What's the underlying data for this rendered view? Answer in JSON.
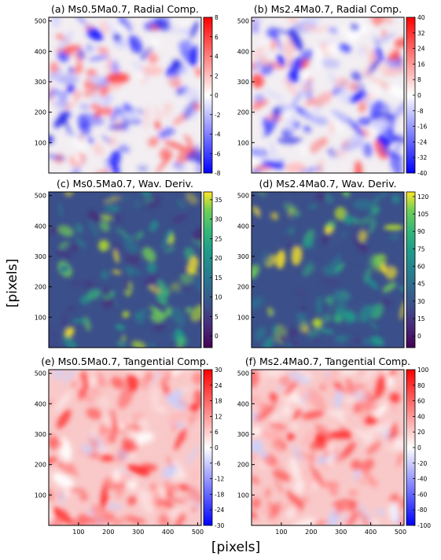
{
  "figure": {
    "xlabel": "[pixels]",
    "ylabel": "[pixels]"
  },
  "chart_data": [
    {
      "type": "heatmap",
      "id": "a",
      "title": "(a) Ms0.5Ma0.7, Radial Comp.",
      "x_ticks": [],
      "y_ticks": [
        100,
        200,
        300,
        400,
        500
      ],
      "xlim": [
        0,
        512
      ],
      "ylim": [
        0,
        512
      ],
      "colormap": "bwr",
      "colorbar": {
        "min": -8,
        "max": 8,
        "ticks": [
          -8,
          -6,
          -4,
          -2,
          0,
          2,
          4,
          6,
          8
        ]
      }
    },
    {
      "type": "heatmap",
      "id": "b",
      "title": "(b) Ms2.4Ma0.7, Radial Comp.",
      "x_ticks": [],
      "y_ticks": [
        100,
        200,
        300,
        400,
        500
      ],
      "xlim": [
        0,
        512
      ],
      "ylim": [
        0,
        512
      ],
      "colormap": "bwr",
      "colorbar": {
        "min": -40,
        "max": 40,
        "ticks": [
          -40,
          -32,
          -24,
          -16,
          -8,
          0,
          8,
          16,
          24,
          32,
          40
        ]
      }
    },
    {
      "type": "heatmap",
      "id": "c",
      "title": "(c) Ms0.5Ma0.7, Wav. Deriv.",
      "x_ticks": [],
      "y_ticks": [
        100,
        200,
        300,
        400,
        500
      ],
      "xlim": [
        0,
        512
      ],
      "ylim": [
        0,
        512
      ],
      "colormap": "viridis",
      "colorbar": {
        "min": -3,
        "max": 37,
        "ticks": [
          0,
          5,
          10,
          15,
          20,
          25,
          30,
          35
        ]
      }
    },
    {
      "type": "heatmap",
      "id": "d",
      "title": "(d) Ms2.4Ma0.7, Wav. Deriv.",
      "x_ticks": [],
      "y_ticks": [
        100,
        200,
        300,
        400,
        500
      ],
      "xlim": [
        0,
        512
      ],
      "ylim": [
        0,
        512
      ],
      "colormap": "viridis",
      "colorbar": {
        "min": -10,
        "max": 124,
        "ticks": [
          0,
          15,
          30,
          45,
          60,
          75,
          90,
          105,
          120
        ]
      }
    },
    {
      "type": "heatmap",
      "id": "e",
      "title": "(e) Ms0.5Ma0.7, Tangential Comp.",
      "x_ticks": [
        100,
        200,
        300,
        400,
        500
      ],
      "y_ticks": [
        100,
        200,
        300,
        400,
        500
      ],
      "xlim": [
        0,
        512
      ],
      "ylim": [
        0,
        512
      ],
      "colormap": "bwr",
      "colorbar": {
        "min": -30,
        "max": 30,
        "ticks": [
          -30,
          -24,
          -18,
          -12,
          -6,
          0,
          6,
          12,
          18,
          24,
          30
        ]
      }
    },
    {
      "type": "heatmap",
      "id": "f",
      "title": "(f) Ms2.4Ma0.7, Tangential Comp.",
      "x_ticks": [
        100,
        200,
        300,
        400,
        500
      ],
      "y_ticks": [
        100,
        200,
        300,
        400,
        500
      ],
      "xlim": [
        0,
        512
      ],
      "ylim": [
        0,
        512
      ],
      "colormap": "bwr",
      "colorbar": {
        "min": -100,
        "max": 100,
        "ticks": [
          -100,
          -80,
          -60,
          -40,
          -20,
          0,
          20,
          40,
          60,
          80,
          100
        ]
      }
    }
  ]
}
